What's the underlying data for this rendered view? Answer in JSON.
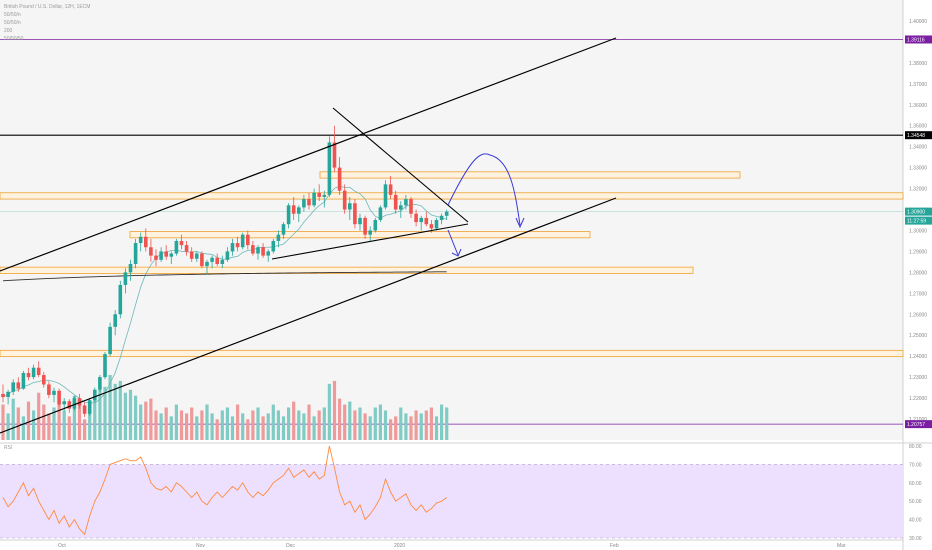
{
  "legend": {
    "title": "British Pound / U.S. Dollar, 12H, 1ECM",
    "ind1": "50/50/n",
    "ind2": "50/50/n",
    "ind3": "200",
    "ind4": "50/50/50"
  },
  "rsi_label": "RSI",
  "colors": {
    "up": "#26a69a",
    "down": "#ef5350",
    "vol_up": "#80cbc4",
    "vol_down": "#ef9a9a",
    "zone_fill": "#fff3e0",
    "zone_border": "#f0a030",
    "trendline": "#000000",
    "ma1": "#6fb7b7",
    "ma2": "#2e2e2e",
    "rsi_line": "#ff8a3d",
    "rsi_band": "#ede0ff",
    "arrow": "#3a3ad8",
    "purple_line": "#7b1fa2"
  },
  "chart_data": [
    {
      "type": "candlestick",
      "title": "British Pound / U.S. Dollar, 12H, 1ECM",
      "y_axis_labels": [
        "1.40000",
        "1.38000",
        "1.37000",
        "1.36000",
        "1.35000",
        "1.34000",
        "1.33000",
        "1.32000",
        "1.31000",
        "1.30000",
        "1.29000",
        "1.28000",
        "1.27000",
        "1.26000",
        "1.25000",
        "1.24000",
        "1.23000",
        "1.22000",
        "1.21000"
      ],
      "x_axis_labels": [
        "Oct",
        "Nov",
        "Dec",
        "2020",
        "Feb",
        "Mar"
      ],
      "price_tags": [
        {
          "label": "1.39116",
          "color": "#7b1fa2"
        },
        {
          "label": "1.34548",
          "color": "#000000"
        },
        {
          "label": "1.30900",
          "color": "#26a69a"
        },
        {
          "label": "11:27:59",
          "color": "#26a69a"
        },
        {
          "label": "1.20757",
          "color": "#7b1fa2"
        }
      ],
      "horizontal_levels": [
        1.39116,
        1.34548,
        1.20757
      ],
      "ylim": [
        1.2,
        1.41
      ],
      "series": [
        {
          "ohlc": [
            [
              1.222,
              1.2265,
              1.218,
              1.2205
            ],
            [
              1.2205,
              1.224,
              1.217,
              1.223
            ],
            [
              1.223,
              1.229,
              1.2215,
              1.2275
            ],
            [
              1.2275,
              1.23,
              1.223,
              1.2245
            ],
            [
              1.2245,
              1.233,
              1.224,
              1.232
            ],
            [
              1.232,
              1.2345,
              1.2285,
              1.23
            ],
            [
              1.23,
              1.236,
              1.229,
              1.2345
            ],
            [
              1.2345,
              1.2375,
              1.23,
              1.231
            ],
            [
              1.231,
              1.2325,
              1.225,
              1.2265
            ],
            [
              1.2265,
              1.228,
              1.22,
              1.2215
            ],
            [
              1.2215,
              1.225,
              1.218,
              1.2235
            ],
            [
              1.2235,
              1.2245,
              1.216,
              1.217
            ],
            [
              1.217,
              1.22,
              1.214,
              1.2185
            ],
            [
              1.2185,
              1.2195,
              1.213,
              1.215
            ],
            [
              1.215,
              1.221,
              1.214,
              1.22
            ],
            [
              1.22,
              1.222,
              1.215,
              1.2165
            ],
            [
              1.2165,
              1.218,
              1.211,
              1.2125
            ],
            [
              1.2125,
              1.22,
              1.2115,
              1.219
            ],
            [
              1.219,
              1.225,
              1.218,
              1.224
            ],
            [
              1.224,
              1.231,
              1.223,
              1.23
            ],
            [
              1.23,
              1.242,
              1.229,
              1.241
            ],
            [
              1.241,
              1.256,
              1.24,
              1.254
            ],
            [
              1.254,
              1.262,
              1.25,
              1.26
            ],
            [
              1.26,
              1.276,
              1.258,
              1.274
            ],
            [
              1.274,
              1.282,
              1.27,
              1.28
            ],
            [
              1.28,
              1.286,
              1.276,
              1.284
            ],
            [
              1.284,
              1.296,
              1.282,
              1.294
            ],
            [
              1.294,
              1.299,
              1.29,
              1.297
            ],
            [
              1.297,
              1.301,
              1.29,
              1.292
            ],
            [
              1.292,
              1.296,
              1.285,
              1.288
            ],
            [
              1.288,
              1.291,
              1.283,
              1.286
            ],
            [
              1.286,
              1.292,
              1.285,
              1.29
            ],
            [
              1.29,
              1.293,
              1.286,
              1.2875
            ],
            [
              1.2875,
              1.29,
              1.284,
              1.289
            ],
            [
              1.289,
              1.296,
              1.288,
              1.295
            ],
            [
              1.295,
              1.298,
              1.291,
              1.293
            ],
            [
              1.293,
              1.295,
              1.288,
              1.29
            ],
            [
              1.29,
              1.292,
              1.285,
              1.2865
            ],
            [
              1.2865,
              1.29,
              1.285,
              1.289
            ],
            [
              1.289,
              1.29,
              1.282,
              1.283
            ],
            [
              1.283,
              1.286,
              1.279,
              1.285
            ],
            [
              1.285,
              1.288,
              1.282,
              1.287
            ],
            [
              1.287,
              1.289,
              1.283,
              1.284
            ],
            [
              1.284,
              1.288,
              1.282,
              1.286
            ],
            [
              1.286,
              1.292,
              1.285,
              1.29
            ],
            [
              1.29,
              1.296,
              1.288,
              1.294
            ],
            [
              1.294,
              1.297,
              1.29,
              1.292
            ],
            [
              1.292,
              1.299,
              1.291,
              1.298
            ],
            [
              1.298,
              1.3,
              1.291,
              1.293
            ],
            [
              1.293,
              1.295,
              1.288,
              1.289
            ],
            [
              1.289,
              1.293,
              1.286,
              1.292
            ],
            [
              1.292,
              1.294,
              1.287,
              1.288
            ],
            [
              1.288,
              1.291,
              1.285,
              1.29
            ],
            [
              1.29,
              1.296,
              1.289,
              1.295
            ],
            [
              1.295,
              1.3,
              1.292,
              1.298
            ],
            [
              1.298,
              1.304,
              1.296,
              1.303
            ],
            [
              1.303,
              1.313,
              1.301,
              1.312
            ],
            [
              1.312,
              1.316,
              1.305,
              1.308
            ],
            [
              1.308,
              1.312,
              1.304,
              1.311
            ],
            [
              1.311,
              1.317,
              1.309,
              1.315
            ],
            [
              1.315,
              1.318,
              1.31,
              1.312
            ],
            [
              1.312,
              1.32,
              1.311,
              1.318
            ],
            [
              1.318,
              1.322,
              1.314,
              1.316
            ],
            [
              1.316,
              1.319,
              1.311,
              1.317
            ],
            [
              1.317,
              1.345,
              1.316,
              1.342
            ],
            [
              1.342,
              1.35,
              1.328,
              1.33
            ],
            [
              1.33,
              1.335,
              1.317,
              1.319
            ],
            [
              1.319,
              1.322,
              1.308,
              1.31
            ],
            [
              1.31,
              1.316,
              1.305,
              1.313
            ],
            [
              1.313,
              1.315,
              1.301,
              1.303
            ],
            [
              1.303,
              1.308,
              1.3,
              1.306
            ],
            [
              1.306,
              1.307,
              1.296,
              1.298
            ],
            [
              1.298,
              1.302,
              1.295,
              1.3
            ],
            [
              1.3,
              1.306,
              1.299,
              1.305
            ],
            [
              1.305,
              1.312,
              1.304,
              1.311
            ],
            [
              1.311,
              1.324,
              1.31,
              1.322
            ],
            [
              1.322,
              1.326,
              1.315,
              1.317
            ],
            [
              1.317,
              1.319,
              1.308,
              1.31
            ],
            [
              1.31,
              1.314,
              1.306,
              1.312
            ],
            [
              1.312,
              1.317,
              1.31,
              1.315
            ],
            [
              1.315,
              1.316,
              1.306,
              1.308
            ],
            [
              1.308,
              1.31,
              1.302,
              1.304
            ],
            [
              1.304,
              1.307,
              1.3,
              1.306
            ],
            [
              1.306,
              1.309,
              1.302,
              1.303
            ],
            [
              1.303,
              1.305,
              1.299,
              1.301
            ],
            [
              1.301,
              1.306,
              1.3,
              1.305
            ],
            [
              1.305,
              1.308,
              1.303,
              1.307
            ],
            [
              1.307,
              1.31,
              1.305,
              1.309
            ]
          ],
          "volume": [
            60,
            45,
            70,
            55,
            40,
            65,
            50,
            80,
            60,
            45,
            55,
            70,
            50,
            40,
            75,
            60,
            35,
            50,
            70,
            85,
            90,
            110,
            95,
            100,
            80,
            85,
            75,
            60,
            65,
            70,
            50,
            45,
            55,
            40,
            60,
            50,
            45,
            55,
            40,
            50,
            60,
            45,
            35,
            50,
            55,
            40,
            60,
            45,
            35,
            50,
            55,
            40,
            45,
            60,
            50,
            40,
            55,
            65,
            50,
            45,
            60,
            40,
            50,
            55,
            95,
            100,
            70,
            60,
            65,
            50,
            55,
            45,
            40,
            55,
            60,
            50,
            35,
            40,
            55,
            45,
            40,
            50,
            45,
            50,
            55,
            40,
            60,
            55
          ],
          "rsi": [
            52,
            47,
            50,
            55,
            60,
            53,
            57,
            50,
            45,
            40,
            45,
            38,
            42,
            36,
            40,
            35,
            32,
            42,
            50,
            55,
            62,
            70,
            71,
            72,
            73,
            72,
            72,
            74,
            68,
            60,
            57,
            56,
            58,
            55,
            60,
            58,
            55,
            52,
            55,
            50,
            48,
            52,
            55,
            52,
            55,
            58,
            56,
            60,
            55,
            52,
            55,
            53,
            56,
            60,
            62,
            64,
            68,
            63,
            65,
            67,
            63,
            66,
            62,
            64,
            80,
            68,
            55,
            48,
            50,
            44,
            48,
            40,
            43,
            47,
            52,
            62,
            55,
            50,
            52,
            54,
            48,
            45,
            48,
            44,
            46,
            49,
            50,
            52
          ]
        }
      ]
    },
    {
      "type": "line",
      "title": "RSI",
      "y_axis_labels": [
        "80.00",
        "70.00",
        "60.00",
        "50.00",
        "40.00",
        "30.00"
      ],
      "ylim": [
        30,
        80
      ]
    }
  ]
}
